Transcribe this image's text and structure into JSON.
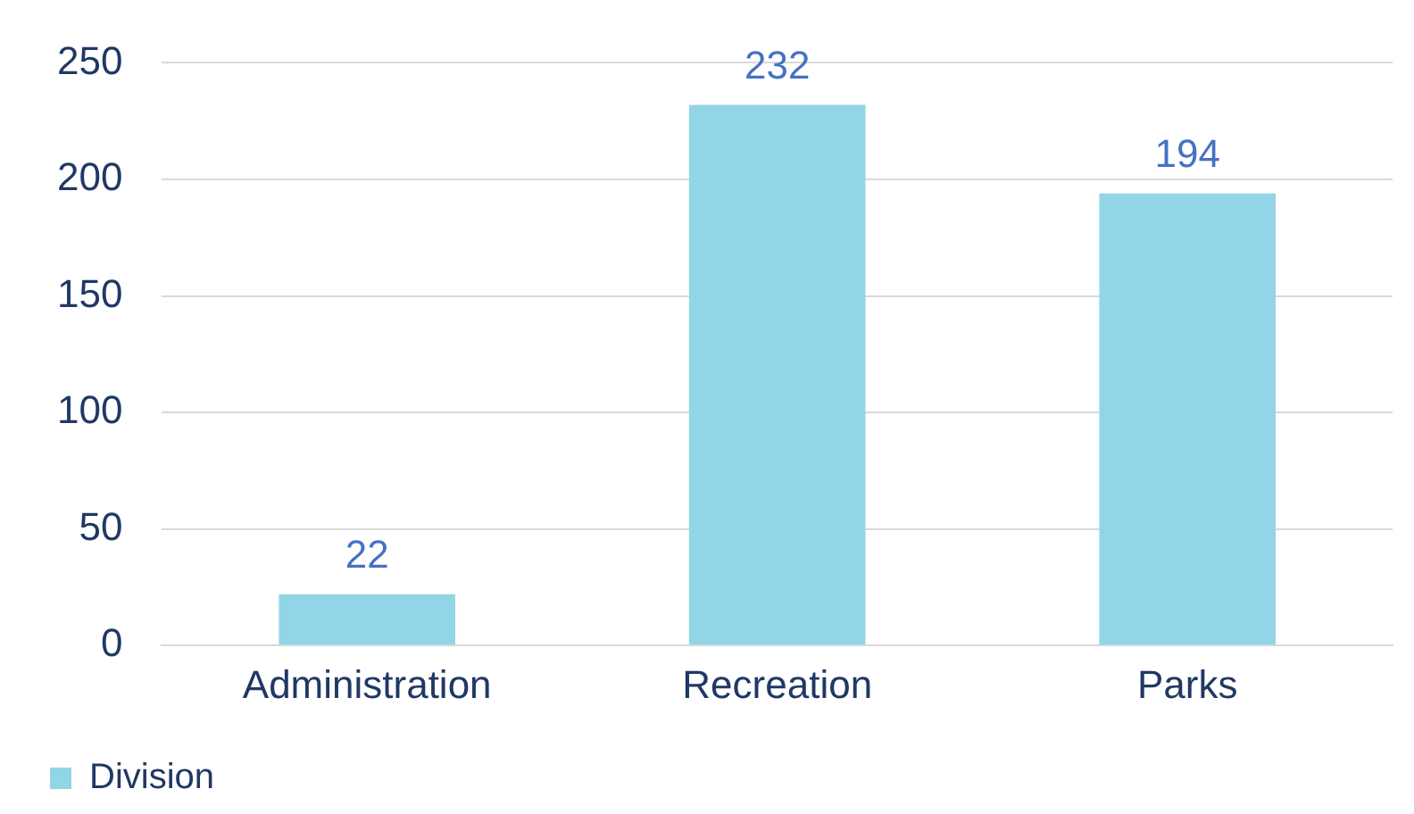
{
  "chart_data": {
    "type": "bar",
    "categories": [
      "Administration",
      "Recreation",
      "Parks"
    ],
    "series": [
      {
        "name": "Division",
        "color": "#92d5e6",
        "values": [
          22,
          232,
          194
        ]
      }
    ],
    "ylim": [
      0,
      250
    ],
    "yticks": [
      0,
      50,
      100,
      150,
      200,
      250
    ],
    "grid": "y",
    "legend": "bottom left",
    "data_labels": true
  }
}
